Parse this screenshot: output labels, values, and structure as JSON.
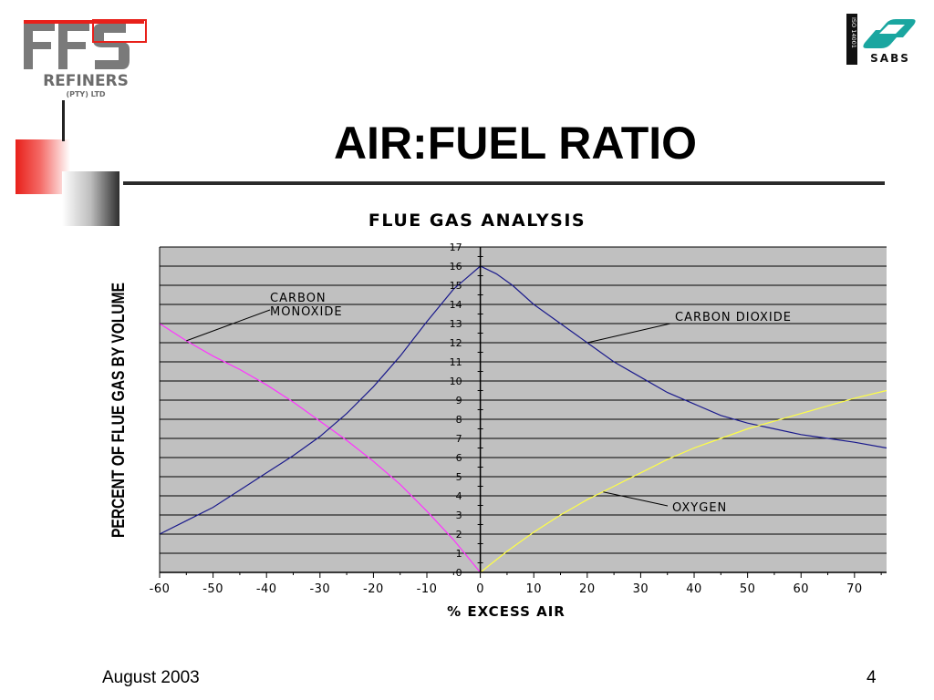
{
  "header": {
    "logo_left": {
      "line1": "FFS",
      "line2": "REFINERS",
      "line3": "(PTY) LTD"
    },
    "logo_right": {
      "vertical": "ISO 14001",
      "name": "SABS"
    }
  },
  "slide": {
    "title": "AIR:FUEL RATIO",
    "footer_date": "August 2003",
    "page_number": "4"
  },
  "colors": {
    "plot_bg": "#c0c0c0",
    "grid": "#000000",
    "carbon_monoxide": "#ff33ff",
    "carbon_dioxide": "#1a1a8c",
    "oxygen": "#ffff44",
    "logo_red": "#e8201a",
    "logo_gray": "#7a7a7a"
  },
  "chart_data": {
    "type": "line",
    "title": "FLUE GAS ANALYSIS",
    "xlabel": "% EXCESS AIR",
    "ylabel": "PERCENT OF FLUE GAS BY VOLUME",
    "xlim": [
      -60,
      76
    ],
    "ylim": [
      0,
      17
    ],
    "x_ticks": [
      "-60",
      "-50",
      "-40",
      "-30",
      "-20",
      "-10",
      "0",
      "10",
      "20",
      "30",
      "40",
      "50",
      "60",
      "70"
    ],
    "y_ticks": [
      "0",
      "1",
      "2",
      "3",
      "4",
      "5",
      "6",
      "7",
      "8",
      "9",
      "10",
      "11",
      "12",
      "13",
      "14",
      "15",
      "16",
      "17"
    ],
    "grid": true,
    "series": [
      {
        "name": "CARBON MONOXIDE",
        "label_lines": [
          "CARBON",
          "MONOXIDE"
        ],
        "x": [
          -60,
          -55,
          -50,
          -45,
          -40,
          -35,
          -30,
          -25,
          -20,
          -15,
          -10,
          -5,
          0
        ],
        "y": [
          13.0,
          12.1,
          11.3,
          10.6,
          9.8,
          8.9,
          7.9,
          6.9,
          5.8,
          4.6,
          3.2,
          1.7,
          0
        ]
      },
      {
        "name": "CARBON DIOXIDE",
        "label_lines": [
          "CARBON DIOXIDE"
        ],
        "x": [
          -60,
          -55,
          -50,
          -45,
          -40,
          -35,
          -30,
          -25,
          -20,
          -15,
          -10,
          -5,
          0,
          3,
          6,
          10,
          15,
          20,
          25,
          30,
          35,
          40,
          45,
          50,
          55,
          60,
          65,
          70,
          76
        ],
        "y": [
          2.0,
          2.7,
          3.4,
          4.3,
          5.2,
          6.1,
          7.1,
          8.3,
          9.7,
          11.3,
          13.1,
          14.8,
          16.0,
          15.6,
          15.0,
          14.0,
          13.0,
          12.0,
          11.0,
          10.2,
          9.4,
          8.8,
          8.2,
          7.8,
          7.5,
          7.2,
          7.0,
          6.8,
          6.5
        ]
      },
      {
        "name": "OXYGEN",
        "label_lines": [
          "OXYGEN"
        ],
        "x": [
          0,
          5,
          10,
          15,
          20,
          25,
          30,
          35,
          40,
          45,
          50,
          55,
          60,
          65,
          70,
          76
        ],
        "y": [
          0,
          1.1,
          2.1,
          3.0,
          3.8,
          4.5,
          5.2,
          5.9,
          6.5,
          7.0,
          7.5,
          7.9,
          8.3,
          8.7,
          9.1,
          9.5
        ]
      }
    ],
    "annotations": [
      {
        "series": "CARBON MONOXIDE",
        "at_x": -55,
        "at_y": 12.1
      },
      {
        "series": "CARBON DIOXIDE",
        "at_x": 20,
        "at_y": 12.0
      },
      {
        "series": "OXYGEN",
        "at_x": 23,
        "at_y": 4.2
      }
    ]
  }
}
